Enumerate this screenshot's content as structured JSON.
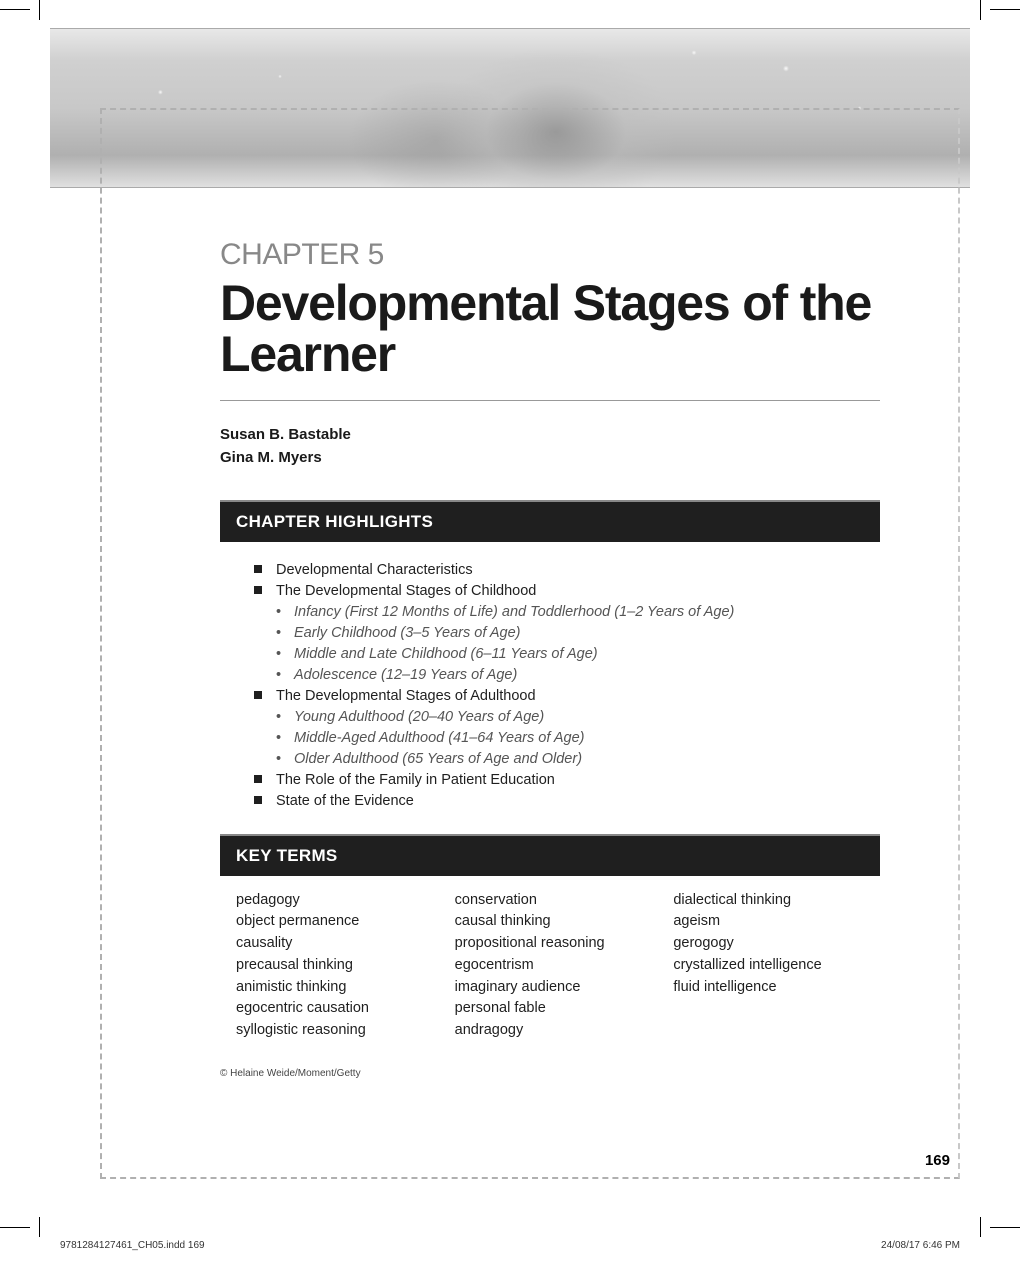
{
  "chapter_label": "CHAPTER 5",
  "chapter_title": "Developmental Stages of the Learner",
  "authors": [
    "Susan B. Bastable",
    "Gina M. Myers"
  ],
  "highlights_heading": "CHAPTER HIGHLIGHTS",
  "highlights": [
    {
      "text": "Developmental Characteristics"
    },
    {
      "text": "The Developmental Stages of Childhood",
      "sub": [
        "Infancy (First 12 Months of Life) and Toddlerhood (1–2 Years of Age)",
        "Early Childhood (3–5 Years of Age)",
        "Middle and Late Childhood (6–11 Years of Age)",
        "Adolescence (12–19 Years of Age)"
      ]
    },
    {
      "text": "The Developmental Stages of Adulthood",
      "sub": [
        "Young Adulthood (20–40 Years of Age)",
        "Middle-Aged Adulthood (41–64 Years of Age)",
        "Older Adulthood (65 Years of Age and Older)"
      ]
    },
    {
      "text": "The Role of the Family in Patient Education"
    },
    {
      "text": "State of the Evidence"
    }
  ],
  "keyterms_heading": "KEY TERMS",
  "keyterms_columns": [
    [
      "pedagogy",
      "object permanence",
      "causality",
      "precausal thinking",
      "animistic thinking",
      "egocentric causation",
      "syllogistic reasoning"
    ],
    [
      "conservation",
      "causal thinking",
      "propositional reasoning",
      "egocentrism",
      "imaginary audience",
      "personal fable",
      "andragogy"
    ],
    [
      "dialectical thinking",
      "ageism",
      "gerogogy",
      "crystallized intelligence",
      "fluid intelligence"
    ]
  ],
  "image_credit": "© Helaine Weide/Moment/Getty",
  "page_number": "169",
  "footer_left": "9781284127461_CH05.indd   169",
  "footer_right": "24/08/17   6:46 PM",
  "colors": {
    "chapter_label": "#888888",
    "title": "#1a1a1a",
    "bar_bg": "#1f1f1f",
    "bar_text": "#ffffff",
    "sub_text": "#555555",
    "dash_border": "#b0b0b0"
  }
}
